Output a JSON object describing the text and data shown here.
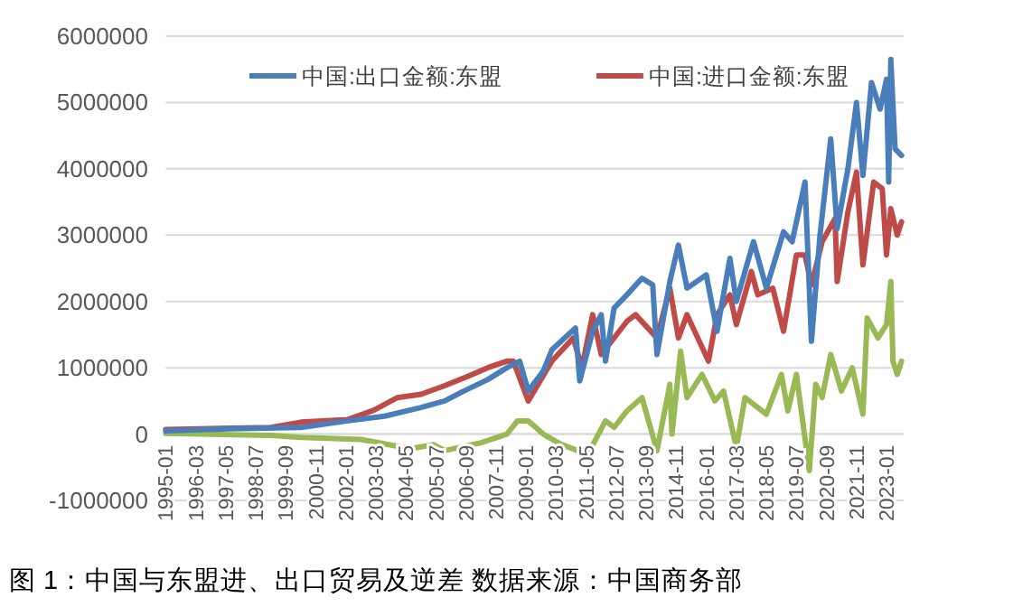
{
  "chart_data": {
    "type": "line",
    "legend": "top",
    "grid": "y",
    "marker": "none",
    "line_style": "solid",
    "annotations": [
      "图 1：中国与东盟进、出口贸易及逆差  数据来源：中国商务部"
    ],
    "xlim": [
      "1995-01",
      "2023-09"
    ],
    "xticks": [
      "1995-01",
      "1996-03",
      "1997-05",
      "1998-07",
      "1999-09",
      "2000-11",
      "2002-01",
      "2003-03",
      "2004-05",
      "2005-07",
      "2006-09",
      "2007-11",
      "2009-01",
      "2010-03",
      "2011-05",
      "2012-07",
      "2013-09",
      "2014-11",
      "2016-01",
      "2017-03",
      "2018-05",
      "2019-07",
      "2020-09",
      "2021-11",
      "2023-01"
    ],
    "ylim": [
      -1000000,
      6000000
    ],
    "yticks": [
      -1000000,
      0,
      1000000,
      2000000,
      3000000,
      4000000,
      5000000,
      6000000
    ],
    "series": [
      {
        "name": "中国:出口金额:东盟",
        "color": "#4a7ebb",
        "x": [
          "1995-01",
          "1997-06",
          "2000-04",
          "2002-02",
          "2003-07",
          "2004-12",
          "2005-11",
          "2006-08",
          "2007-07",
          "2008-04",
          "2008-10",
          "2009-02",
          "2009-09",
          "2010-01",
          "2010-12",
          "2011-02",
          "2011-08",
          "2011-12",
          "2012-02",
          "2012-06",
          "2012-12",
          "2013-07",
          "2013-12",
          "2014-02",
          "2014-08",
          "2014-12",
          "2015-04",
          "2016-01",
          "2016-06",
          "2016-12",
          "2017-03",
          "2017-11",
          "2018-05",
          "2019-01",
          "2019-05",
          "2019-11",
          "2020-02",
          "2020-06",
          "2020-11",
          "2021-02",
          "2021-07",
          "2021-11",
          "2022-02",
          "2022-06",
          "2022-10",
          "2023-01",
          "2023-02",
          "2023-03",
          "2023-05",
          "2023-08"
        ],
        "values": [
          50000,
          80000,
          100000,
          200000,
          270000,
          400000,
          500000,
          650000,
          820000,
          1000000,
          1100000,
          650000,
          950000,
          1270000,
          1600000,
          800000,
          1550000,
          1800000,
          1100000,
          1900000,
          2100000,
          2350000,
          2250000,
          1200000,
          2300000,
          2850000,
          2200000,
          2400000,
          1550000,
          2650000,
          2000000,
          2900000,
          2200000,
          3050000,
          2900000,
          3800000,
          1400000,
          3000000,
          4450000,
          3100000,
          4000000,
          5000000,
          3900000,
          5300000,
          4900000,
          5350000,
          3800000,
          5650000,
          4300000,
          4200000
        ]
      },
      {
        "name": "中国:进口金额:东盟",
        "color": "#be4b48",
        "x": [
          "1995-01",
          "1999-02",
          "2000-04",
          "2002-02",
          "2003-02",
          "2004-01",
          "2004-12",
          "2005-11",
          "2006-09",
          "2007-07",
          "2008-04",
          "2008-07",
          "2009-02",
          "2010-01",
          "2010-11",
          "2011-03",
          "2011-08",
          "2011-12",
          "2012-12",
          "2013-04",
          "2014-02",
          "2014-08",
          "2014-12",
          "2015-04",
          "2016-02",
          "2016-06",
          "2016-12",
          "2017-03",
          "2017-10",
          "2018-01",
          "2018-08",
          "2019-01",
          "2019-07",
          "2019-11",
          "2020-02",
          "2020-07",
          "2021-01",
          "2021-02",
          "2021-07",
          "2021-11",
          "2022-02",
          "2022-07",
          "2022-11",
          "2023-01",
          "2023-03",
          "2023-06",
          "2023-08"
        ],
        "values": [
          70000,
          100000,
          180000,
          220000,
          360000,
          550000,
          600000,
          730000,
          860000,
          1000000,
          1100000,
          1100000,
          500000,
          1100000,
          1450000,
          1000000,
          1800000,
          1200000,
          1700000,
          1800000,
          1450000,
          2200000,
          1450000,
          1800000,
          1100000,
          1800000,
          2100000,
          1650000,
          2450000,
          2100000,
          2200000,
          1550000,
          2700000,
          2700000,
          2250000,
          2900000,
          3250000,
          2300000,
          3350000,
          3950000,
          2550000,
          3800000,
          3700000,
          2700000,
          3400000,
          3000000,
          3200000
        ]
      },
      {
        "color": "#98b954",
        "x": [
          "1995-01",
          "1999-02",
          "2000-04",
          "2002-08",
          "2004-07",
          "2005-06",
          "2005-11",
          "2007-04",
          "2008-04",
          "2008-09",
          "2009-02",
          "2009-09",
          "2010-05",
          "2011-01",
          "2011-05",
          "2012-02",
          "2012-06",
          "2012-12",
          "2013-07",
          "2014-02",
          "2014-08",
          "2014-09",
          "2015-01",
          "2015-04",
          "2015-11",
          "2016-05",
          "2016-09",
          "2017-03",
          "2017-07",
          "2018-05",
          "2018-12",
          "2019-03",
          "2019-07",
          "2020-01",
          "2020-04",
          "2020-07",
          "2020-11",
          "2021-04",
          "2021-09",
          "2022-02",
          "2022-04",
          "2022-09",
          "2023-01",
          "2023-03",
          "2023-04",
          "2023-06",
          "2023-08"
        ],
        "values": [
          10000,
          -20000,
          -50000,
          -80000,
          -220000,
          -160000,
          -250000,
          -130000,
          0,
          200000,
          200000,
          0,
          -150000,
          -250000,
          -350000,
          200000,
          100000,
          350000,
          550000,
          -250000,
          750000,
          0,
          1250000,
          550000,
          900000,
          500000,
          650000,
          -200000,
          550000,
          300000,
          900000,
          350000,
          900000,
          -550000,
          750000,
          550000,
          1200000,
          650000,
          1000000,
          300000,
          1750000,
          1450000,
          1650000,
          2300000,
          1100000,
          900000,
          1100000
        ]
      }
    ]
  }
}
